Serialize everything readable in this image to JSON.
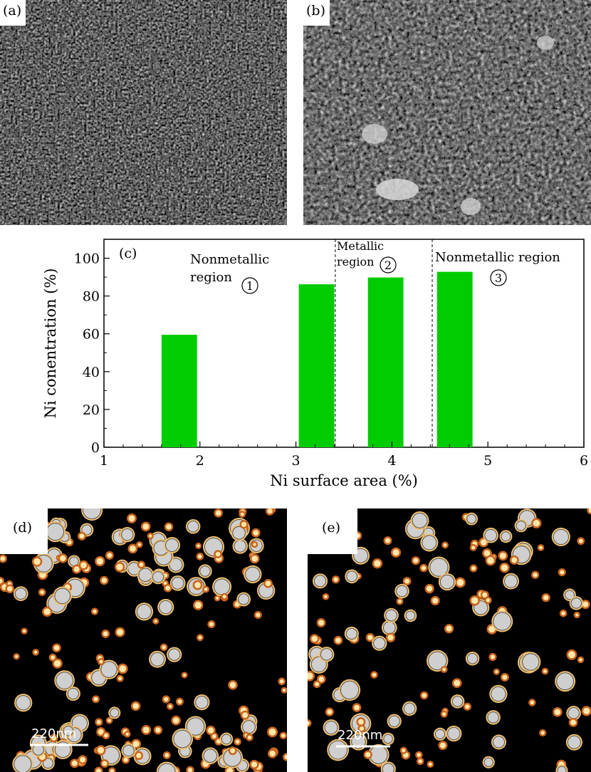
{
  "panels": {
    "a": {
      "label": "(a)"
    },
    "b": {
      "label": "(b)"
    },
    "d": {
      "label": "(d)",
      "scale_text": "220nm"
    },
    "e": {
      "label": "(e)",
      "scale_text": "220nm"
    }
  },
  "chart_data": {
    "type": "bar",
    "panel_label": "(c)",
    "xlabel": "Ni surface area (%)",
    "ylabel": "Ni conentration (%)",
    "xlim": [
      1,
      6
    ],
    "ylim": [
      0,
      110
    ],
    "xticks": [
      1,
      2,
      3,
      4,
      5,
      6
    ],
    "yticks": [
      0,
      20,
      40,
      60,
      80,
      100
    ],
    "bar_color": "#00cc00",
    "bars": [
      {
        "x_start": 1.6,
        "x_end": 1.97,
        "value": 59.5
      },
      {
        "x_start": 3.03,
        "x_end": 3.4,
        "value": 86.2
      },
      {
        "x_start": 3.75,
        "x_end": 4.12,
        "value": 89.8
      },
      {
        "x_start": 4.47,
        "x_end": 4.84,
        "value": 92.8
      }
    ],
    "dividers_x": [
      3.41,
      4.42
    ],
    "annotations": {
      "region1_line1": "Nonmetallic",
      "region1_line2": "region",
      "region1_num": "1",
      "region2_line1": "Metallic",
      "region2_line2": "region",
      "region2_num": "2",
      "region3_line1": "Nonmetallic region",
      "region3_num": "3"
    },
    "grid": false,
    "legend": "none"
  }
}
